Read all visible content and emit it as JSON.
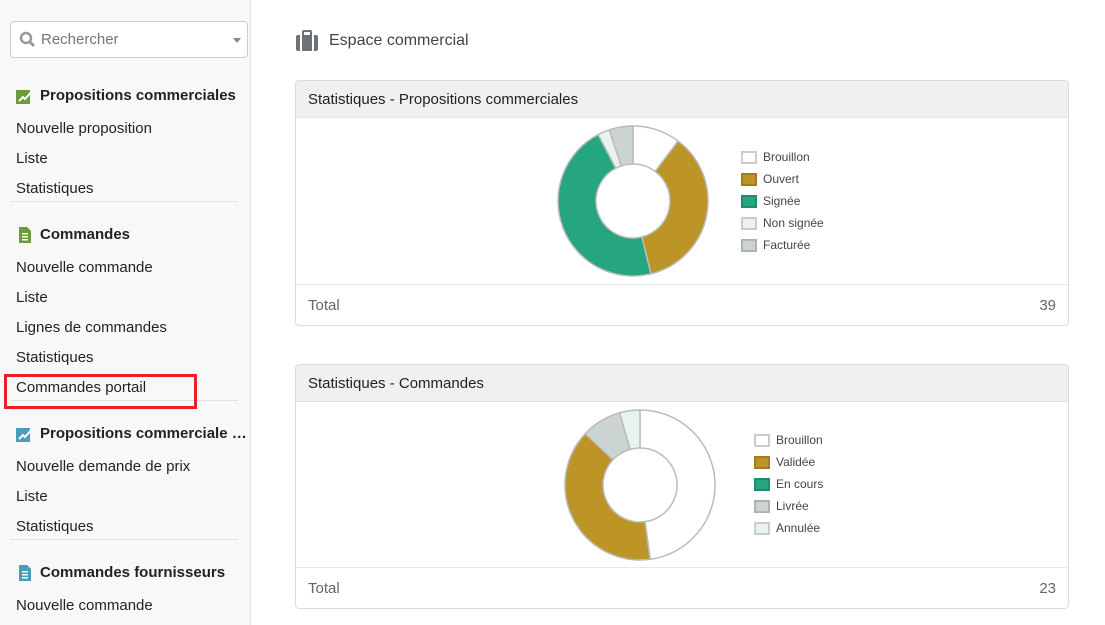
{
  "sidebar": {
    "search_placeholder": "Rechercher",
    "sections": [
      {
        "title": "Propositions commerciales",
        "icon": "proposal-icon",
        "color": "#6a9c3b",
        "items": [
          "Nouvelle proposition",
          "Liste",
          "Statistiques"
        ]
      },
      {
        "title": "Commandes",
        "icon": "order-icon",
        "color": "#6a9c3b",
        "items": [
          "Nouvelle commande",
          "Liste",
          "Lignes de commandes",
          "Statistiques",
          "Commandes portail"
        ]
      },
      {
        "title": "Propositions commerciale …",
        "icon": "supplier-proposal-icon",
        "color": "#4a9cb8",
        "items": [
          "Nouvelle demande de prix",
          "Liste",
          "Statistiques"
        ]
      },
      {
        "title": "Commandes fournisseurs",
        "icon": "supplier-order-icon",
        "color": "#4a9cb8",
        "items": [
          "Nouvelle commande"
        ]
      }
    ]
  },
  "header": {
    "title": "Espace commercial",
    "icon": "briefcase-icon"
  },
  "chart_data": [
    {
      "type": "pie",
      "title": "Statistiques - Propositions commerciales",
      "footer_label": "Total",
      "total": "39",
      "categories": [
        "Brouillon",
        "Ouvert",
        "Signée",
        "Non signée",
        "Facturée"
      ],
      "values": [
        4,
        14,
        18,
        1,
        2
      ],
      "colors": [
        "#ffffff",
        "#bc9526",
        "#25a580",
        "#e8f2f1",
        "#cbd3d3"
      ]
    },
    {
      "type": "pie",
      "title": "Statistiques - Commandes",
      "footer_label": "Total",
      "total": "23",
      "categories": [
        "Brouillon",
        "Validée",
        "En cours",
        "Livrée",
        "Annulée"
      ],
      "values": [
        11,
        9,
        0,
        2,
        1
      ],
      "colors": [
        "#ffffff",
        "#bc9526",
        "#25a580",
        "#cbd3d3",
        "#e8f2f1"
      ]
    }
  ]
}
